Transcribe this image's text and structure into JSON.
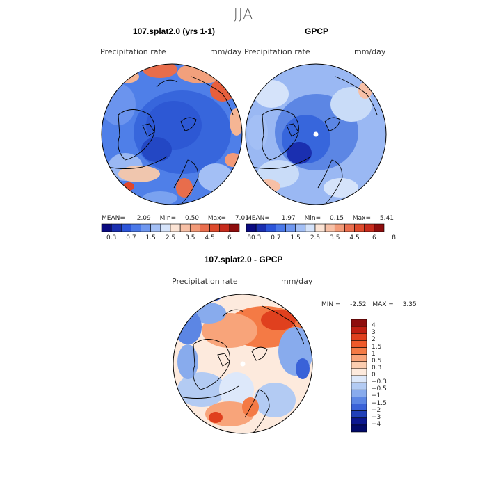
{
  "figure": {
    "season": "JJA"
  },
  "panels": [
    {
      "title": "107.splat2.0 (yrs 1-1)",
      "variable": "Precipitation rate",
      "units": "mm/day",
      "stats": {
        "mean_label": "MEAN=",
        "mean": "2.09",
        "min_label": "Min=",
        "min": "0.50",
        "max_label": "Max=",
        "max": "7.01"
      }
    },
    {
      "title": "GPCP",
      "variable": "Precipitation rate",
      "units": "mm/day",
      "stats": {
        "mean_label": "MEAN=",
        "mean": "1.97",
        "min_label": "Min=",
        "min": "0.15",
        "max_label": "Max=",
        "max": "5.41"
      }
    },
    {
      "title": "107.splat2.0 - GPCP",
      "variable": "Precipitation rate",
      "units": "mm/day",
      "stats": {
        "min_label": "MIN =",
        "min": "-2.52",
        "max_label": "MAX =",
        "max": "3.35"
      }
    }
  ],
  "colorbar_horizontal": {
    "tick_labels": [
      "0.3",
      "0.7",
      "1.5",
      "2.5",
      "3.5",
      "4.5",
      "6",
      "8"
    ],
    "colors": [
      "#0a0a80",
      "#1a2fb0",
      "#2c55d9",
      "#4a78e8",
      "#6f97ef",
      "#a3bff5",
      "#d5e3fa",
      "#fbe3d4",
      "#f7c0a6",
      "#f29a78",
      "#ea6e4e",
      "#de4a2c",
      "#c72b1c",
      "#8e0d0d"
    ]
  },
  "colorbar_vertical": {
    "tick_labels": [
      "4",
      "3",
      "2",
      "1.5",
      "1",
      "0.5",
      "0.3",
      "0",
      "−0.3",
      "−0.5",
      "−1",
      "−1.5",
      "−2",
      "−3",
      "−4"
    ],
    "colors": [
      "#8e0d0d",
      "#c01f12",
      "#e0401e",
      "#ef5a2a",
      "#f47a45",
      "#f8a47a",
      "#fbcdb0",
      "#fdeadd",
      "#dde8fa",
      "#b3cbf3",
      "#88abed",
      "#5c86e4",
      "#3a62d8",
      "#2040b8",
      "#0c1890",
      "#020a6a"
    ]
  }
}
